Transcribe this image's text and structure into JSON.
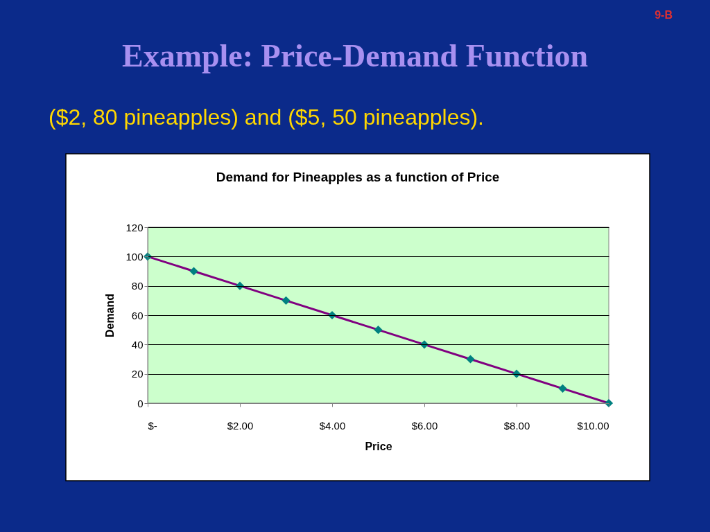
{
  "chart_data": {
    "type": "line",
    "title": "Demand for Pineapples as a function of Price",
    "annotations": [
      "Example: Price-Demand Function",
      "($2, 80 pineapples) and ($5, 50 pineapples).",
      "9-B"
    ],
    "xlabel": "Price",
    "ylabel": "Demand",
    "x": [
      0,
      1,
      2,
      3,
      4,
      5,
      6,
      7,
      8,
      9,
      10
    ],
    "series": [
      {
        "color": "#800080",
        "values": [
          100,
          90,
          80,
          70,
          60,
          50,
          40,
          30,
          20,
          10,
          0
        ]
      }
    ],
    "marker": "diamond",
    "xlim": [
      0,
      10
    ],
    "xticks": [
      {
        "value": 0,
        "label": "$-"
      },
      {
        "value": 2,
        "label": "$2.00"
      },
      {
        "value": 4,
        "label": "$4.00"
      },
      {
        "value": 6,
        "label": "$6.00"
      },
      {
        "value": 8,
        "label": "$8.00"
      },
      {
        "value": 10,
        "label": "$10.00"
      }
    ],
    "ylim": [
      0,
      120
    ],
    "yticks": [
      0,
      20,
      40,
      60,
      80,
      100,
      120
    ],
    "grid": "y"
  }
}
